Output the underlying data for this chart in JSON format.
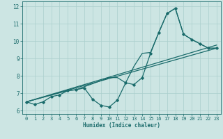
{
  "xlabel": "Humidex (Indice chaleur)",
  "xlim": [
    -0.5,
    23.5
  ],
  "ylim": [
    5.8,
    12.3
  ],
  "xticks": [
    0,
    1,
    2,
    3,
    4,
    5,
    6,
    7,
    8,
    9,
    10,
    11,
    12,
    13,
    14,
    15,
    16,
    17,
    18,
    19,
    20,
    21,
    22,
    23
  ],
  "yticks": [
    6,
    7,
    8,
    9,
    10,
    11,
    12
  ],
  "bg_color": "#cce5e3",
  "line_color": "#1a6b6b",
  "grid_color": "#aacfcd",
  "jagged_x": [
    0,
    1,
    2,
    3,
    4,
    5,
    6,
    7,
    8,
    9,
    10,
    11,
    12,
    13,
    14,
    15,
    16,
    17,
    18,
    19,
    20,
    21,
    22,
    23
  ],
  "jagged_y": [
    6.5,
    6.35,
    6.5,
    6.8,
    6.9,
    7.15,
    7.2,
    7.3,
    6.65,
    6.3,
    6.2,
    6.6,
    7.6,
    7.5,
    7.9,
    9.3,
    10.5,
    11.6,
    11.9,
    10.4,
    10.1,
    9.85,
    9.6,
    9.6
  ],
  "trend1_x": [
    0,
    23
  ],
  "trend1_y": [
    6.5,
    9.6
  ],
  "trend2_x": [
    0,
    23
  ],
  "trend2_y": [
    6.5,
    9.78
  ],
  "envelope_x": [
    0,
    5,
    6,
    10,
    11,
    12,
    13,
    14,
    15,
    16,
    17,
    18,
    19,
    20,
    21,
    22,
    23
  ],
  "envelope_y": [
    6.5,
    7.15,
    7.2,
    7.9,
    7.9,
    7.6,
    8.55,
    9.3,
    9.35,
    10.5,
    11.6,
    11.9,
    10.4,
    10.1,
    9.85,
    9.6,
    9.6
  ]
}
